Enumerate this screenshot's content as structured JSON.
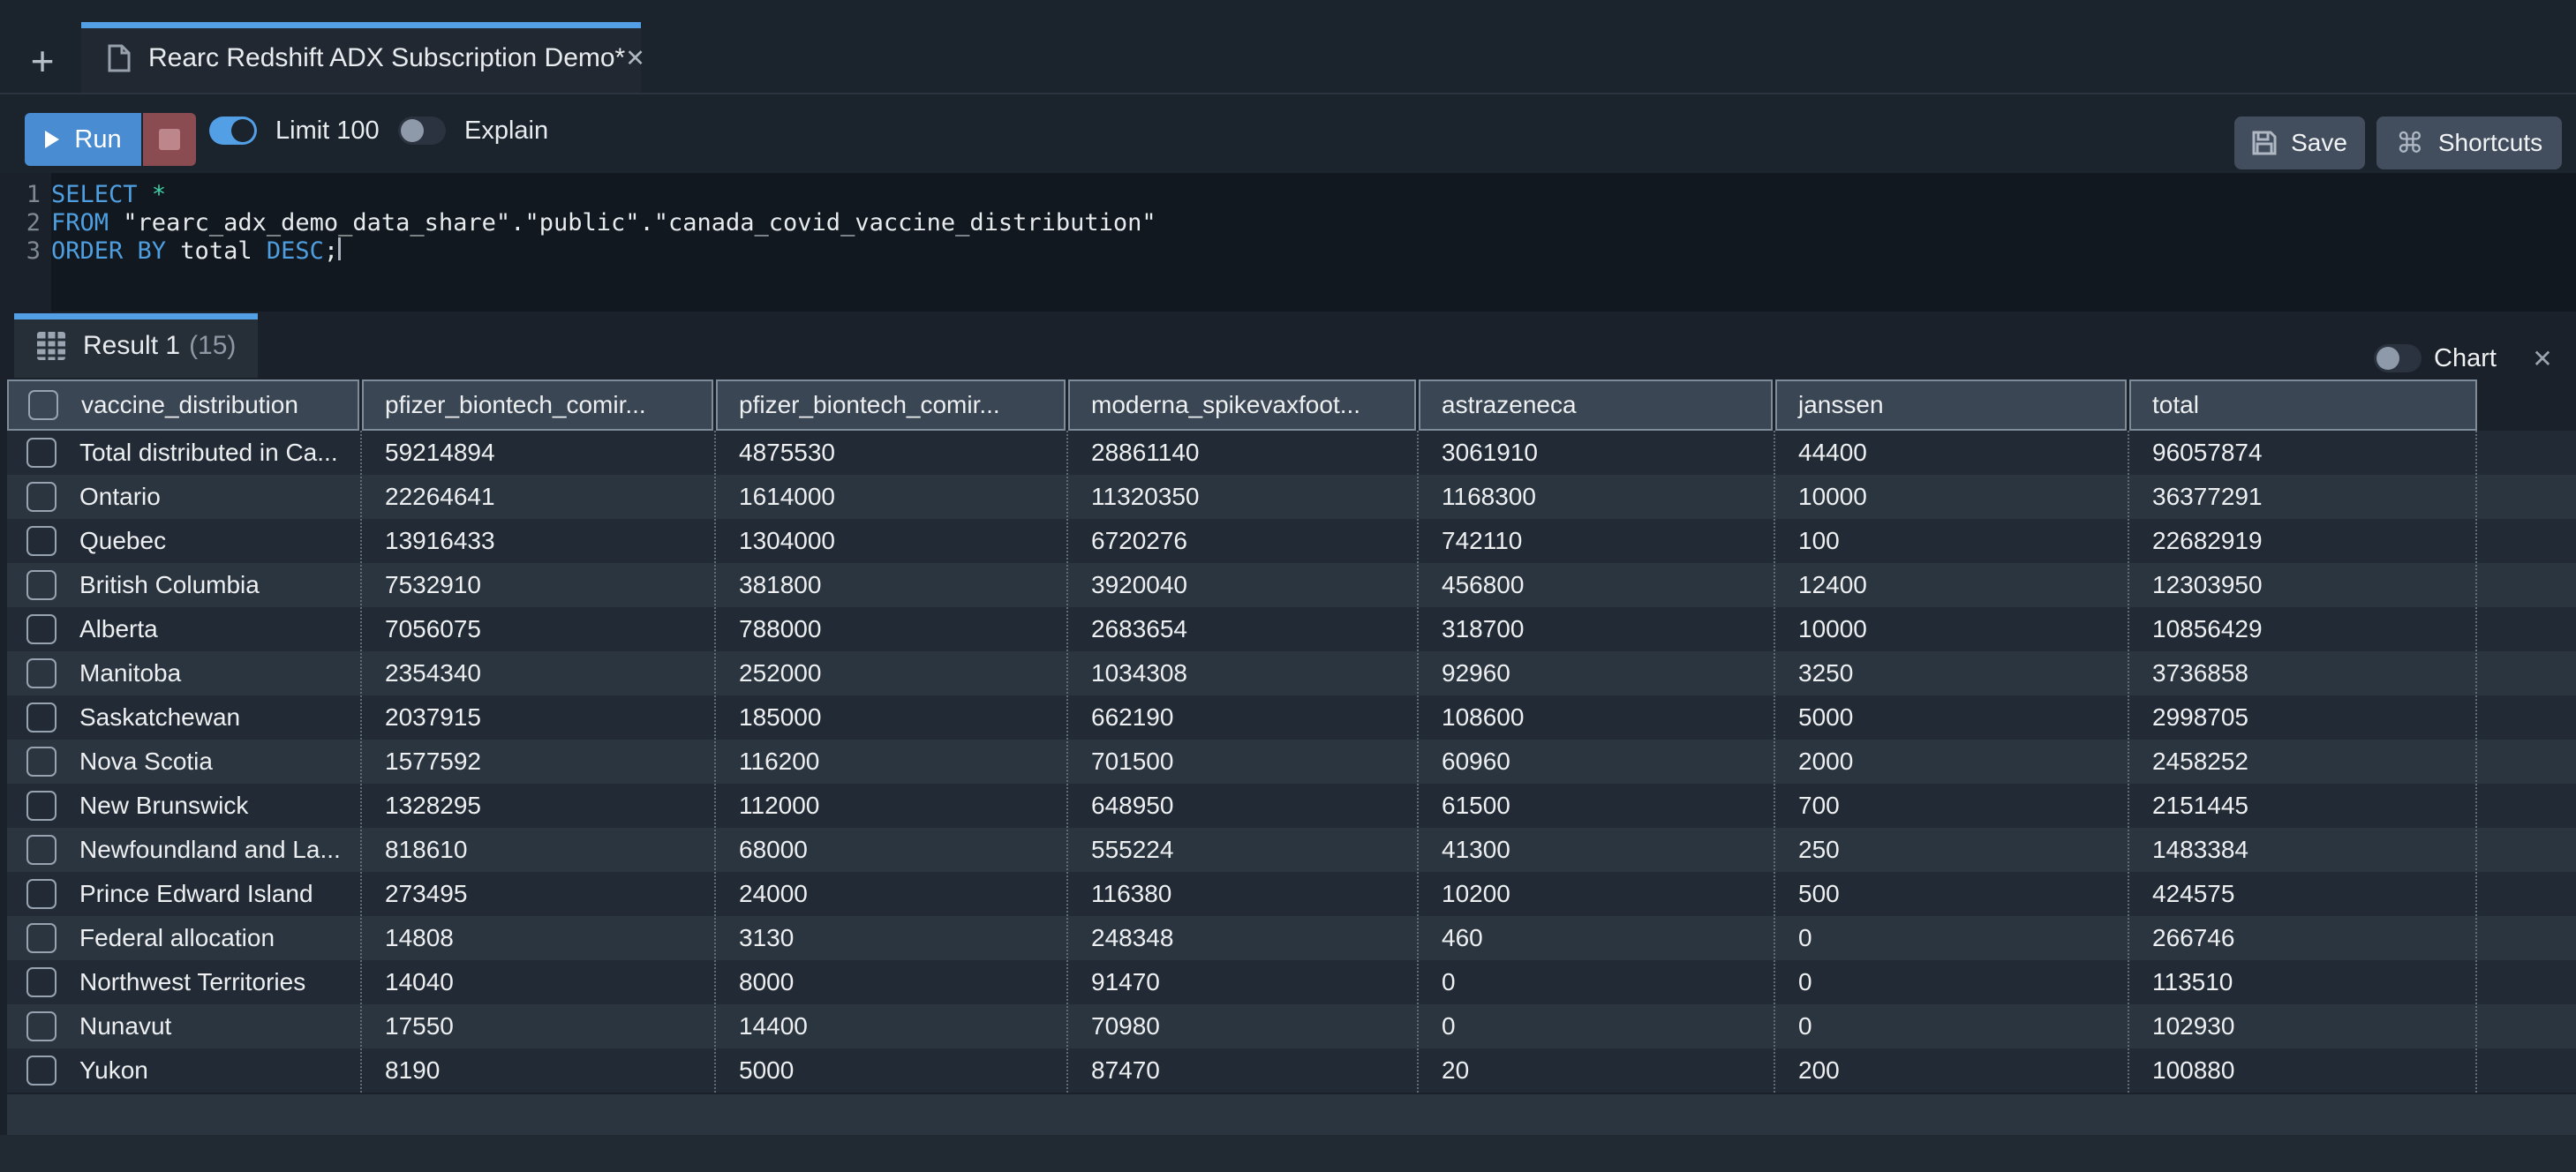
{
  "colors": {
    "accent_blue": "#539fe5",
    "run_button": "#4a8cd1",
    "stop_button": "#8a4b51",
    "toolbar_button": "#424e5d",
    "editor_bg": "#12181f",
    "keyword": "#4f9fe0",
    "operator_star": "#41d1a7",
    "header_cell_bg": "#3a4653",
    "row_dark": "#222b35",
    "row_light": "#2b3540",
    "panel_bg": "#1a212a"
  },
  "icons": {
    "new_tab": "+",
    "tab_close": "✕",
    "results_close": "✕",
    "command": "⌘"
  },
  "tab_bar": {
    "tab_title": "Rearc Redshift ADX Subscription Demo*"
  },
  "toolbar": {
    "run_label": "Run",
    "limit_label": "Limit 100",
    "limit_on": true,
    "explain_label": "Explain",
    "explain_on": false,
    "save_label": "Save",
    "shortcuts_label": "Shortcuts"
  },
  "editor": {
    "lines": [
      {
        "no": "1",
        "tokens": [
          {
            "text": "SELECT",
            "type": "keyword"
          },
          {
            "text": " ",
            "type": "plain"
          },
          {
            "text": "*",
            "type": "operator"
          }
        ]
      },
      {
        "no": "2",
        "tokens": [
          {
            "text": "FROM",
            "type": "keyword"
          },
          {
            "text": " ",
            "type": "plain"
          },
          {
            "text": "\"rearc_adx_demo_data_share\".\"public\".\"canada_covid_vaccine_distribution\"",
            "type": "string"
          }
        ]
      },
      {
        "no": "3",
        "tokens": [
          {
            "text": "ORDER BY",
            "type": "keyword"
          },
          {
            "text": " total ",
            "type": "plain"
          },
          {
            "text": "DESC",
            "type": "keyword"
          },
          {
            "text": ";",
            "type": "plain"
          }
        ],
        "cursor": true
      }
    ]
  },
  "results": {
    "tab_label": "Result 1",
    "tab_count": "(15)",
    "chart_label": "Chart",
    "chart_on": false
  },
  "table": {
    "columns": [
      "vaccine_distribution",
      "pfizer_biontech_comir...",
      "pfizer_biontech_comir...",
      "moderna_spikevaxfoot...",
      "astrazeneca",
      "janssen",
      "total"
    ],
    "rows": [
      [
        "Total distributed in Ca...",
        "59214894",
        "4875530",
        "28861140",
        "3061910",
        "44400",
        "96057874"
      ],
      [
        "Ontario",
        "22264641",
        "1614000",
        "11320350",
        "1168300",
        "10000",
        "36377291"
      ],
      [
        "Quebec",
        "13916433",
        "1304000",
        "6720276",
        "742110",
        "100",
        "22682919"
      ],
      [
        "British Columbia",
        "7532910",
        "381800",
        "3920040",
        "456800",
        "12400",
        "12303950"
      ],
      [
        "Alberta",
        "7056075",
        "788000",
        "2683654",
        "318700",
        "10000",
        "10856429"
      ],
      [
        "Manitoba",
        "2354340",
        "252000",
        "1034308",
        "92960",
        "3250",
        "3736858"
      ],
      [
        "Saskatchewan",
        "2037915",
        "185000",
        "662190",
        "108600",
        "5000",
        "2998705"
      ],
      [
        "Nova Scotia",
        "1577592",
        "116200",
        "701500",
        "60960",
        "2000",
        "2458252"
      ],
      [
        "New Brunswick",
        "1328295",
        "112000",
        "648950",
        "61500",
        "700",
        "2151445"
      ],
      [
        "Newfoundland and La...",
        "818610",
        "68000",
        "555224",
        "41300",
        "250",
        "1483384"
      ],
      [
        "Prince Edward Island",
        "273495",
        "24000",
        "116380",
        "10200",
        "500",
        "424575"
      ],
      [
        "Federal allocation",
        "14808",
        "3130",
        "248348",
        "460",
        "0",
        "266746"
      ],
      [
        "Northwest Territories",
        "14040",
        "8000",
        "91470",
        "0",
        "0",
        "113510"
      ],
      [
        "Nunavut",
        "17550",
        "14400",
        "70980",
        "0",
        "0",
        "102930"
      ],
      [
        "Yukon",
        "8190",
        "5000",
        "87470",
        "20",
        "200",
        "100880"
      ]
    ]
  }
}
